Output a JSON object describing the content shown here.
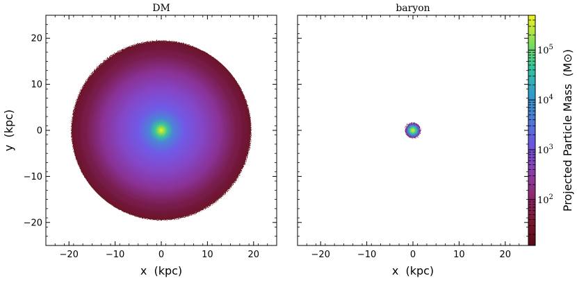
{
  "chart_data": [
    {
      "type": "heatmap",
      "title": "DM",
      "xlabel": "x  (kpc)",
      "ylabel": "y  (kpc)",
      "xlim": [
        -25,
        25
      ],
      "ylim": [
        -25,
        25
      ],
      "xticks": [
        -20,
        -10,
        0,
        10,
        20
      ],
      "yticks": [
        -20,
        -10,
        0,
        10,
        20
      ],
      "xtick_labels": [
        "−20",
        "−10",
        "0",
        "10",
        "20"
      ],
      "ytick_labels": [
        "−20",
        "−10",
        "0",
        "10",
        "20"
      ],
      "distribution": {
        "shape": "disc",
        "center": [
          0,
          0
        ],
        "radius_kpc": 19.5,
        "peak_mass_msun": 300000
      },
      "grid": false
    },
    {
      "type": "heatmap",
      "title": "baryon",
      "xlabel": "x  (kpc)",
      "ylabel": "",
      "xlim": [
        -25,
        25
      ],
      "ylim": [
        -25,
        25
      ],
      "xticks": [
        -20,
        -10,
        0,
        10,
        20
      ],
      "xtick_labels": [
        "−20",
        "−10",
        "0",
        "10",
        "20"
      ],
      "distribution": {
        "shape": "disc",
        "center": [
          0,
          0
        ],
        "radius_kpc": 1.7,
        "peak_mass_msun": 300000
      },
      "grid": false
    }
  ],
  "colorbar": {
    "label": "Projected Particle Mass  (M⊙)",
    "scale": "log",
    "vmin": 12,
    "vmax": 500000,
    "ticks": [
      {
        "value": 100,
        "base": "10",
        "exp": "2"
      },
      {
        "value": 1000,
        "base": "10",
        "exp": "3"
      },
      {
        "value": 10000,
        "base": "10",
        "exp": "4"
      },
      {
        "value": 100000,
        "base": "10",
        "exp": "5"
      }
    ],
    "colormap": "viridis_r-like",
    "colors": [
      "#5a0a14",
      "#7a1530",
      "#8e2a6e",
      "#8a3fb0",
      "#6a55e0",
      "#4a7ad8",
      "#2f9ec8",
      "#2ec4a0",
      "#7fdc5a",
      "#f2f21e"
    ]
  }
}
